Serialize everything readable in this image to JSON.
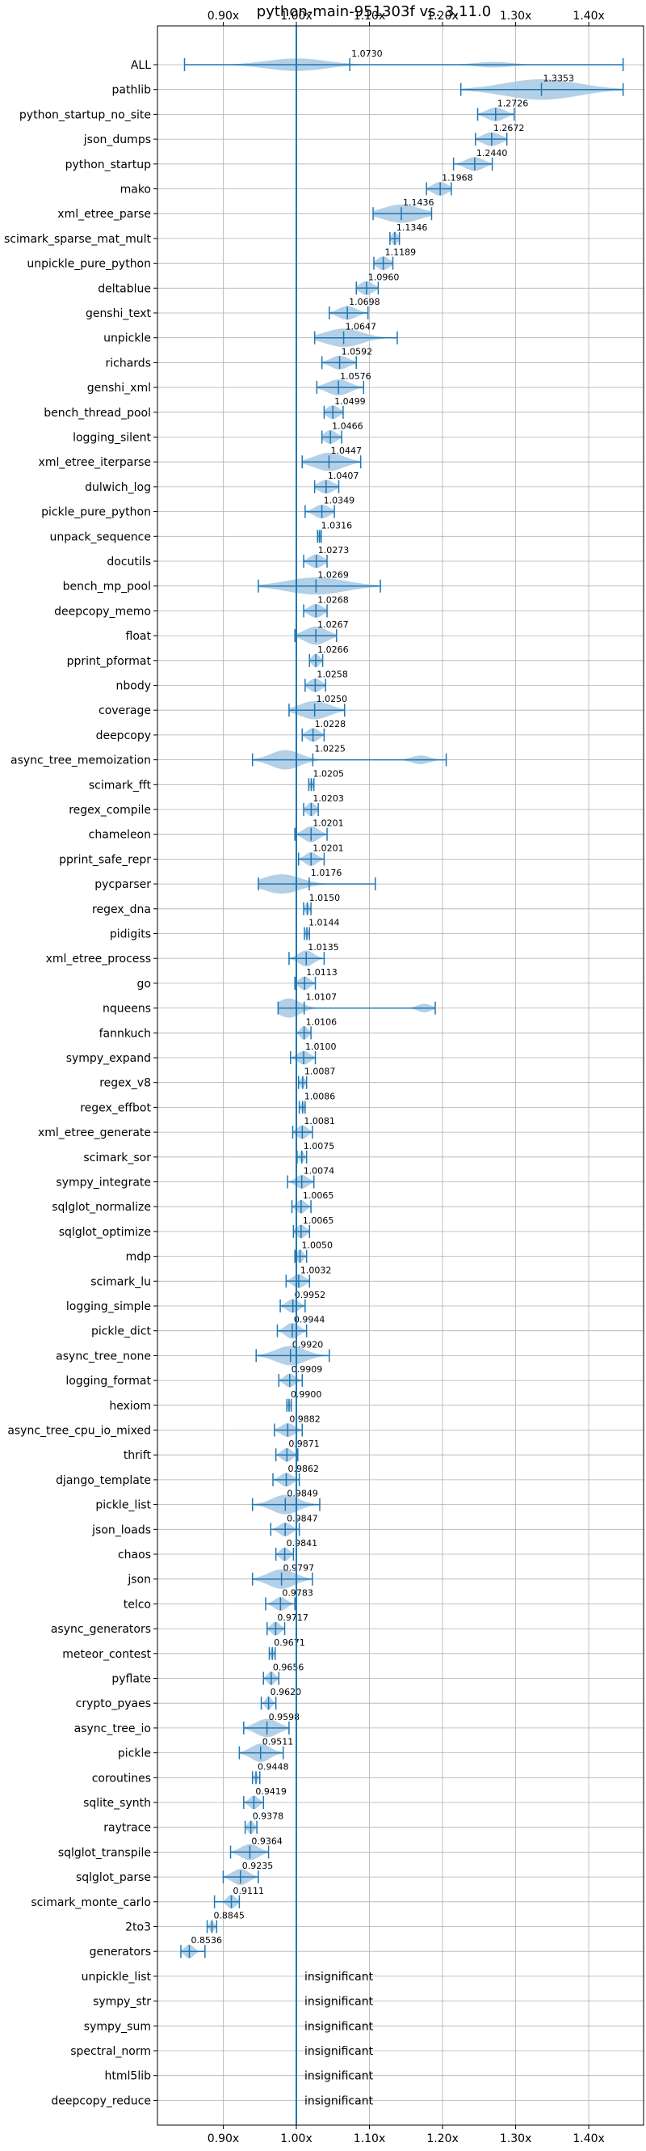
{
  "chart_data": {
    "type": "violin",
    "title": "python-main-951303f vs. 3.11.0",
    "xlim": [
      0.81,
      1.475
    ],
    "xticks": [
      0.9,
      1.0,
      1.1,
      1.2,
      1.3,
      1.4
    ],
    "xtick_labels": [
      "0.90x",
      "1.00x",
      "1.10x",
      "1.20x",
      "1.30x",
      "1.40x"
    ],
    "reference_line": 1.0,
    "colors": {
      "violin": "#a6c8e3",
      "line": "#1f77b4",
      "grid": "#b0b0b0"
    },
    "insignificant_label": "insignificant",
    "benchmarks": [
      {
        "name": "ALL",
        "mean": 1.073,
        "min": 0.847,
        "max": 1.447,
        "spread": 0.04,
        "width": 0.55,
        "center": 1.0,
        "extra": [
          1.27
        ],
        "label": "1.0730"
      },
      {
        "name": "pathlib",
        "mean": 1.3353,
        "min": 1.225,
        "max": 1.447,
        "spread": 0.05,
        "width": 0.9,
        "label": "1.3353"
      },
      {
        "name": "python_startup_no_site",
        "mean": 1.2726,
        "min": 1.248,
        "max": 1.298,
        "spread": 0.012,
        "width": 0.6,
        "label": "1.2726"
      },
      {
        "name": "json_dumps",
        "mean": 1.2672,
        "min": 1.245,
        "max": 1.288,
        "spread": 0.012,
        "width": 0.6,
        "label": "1.2672"
      },
      {
        "name": "python_startup",
        "mean": 1.244,
        "min": 1.215,
        "max": 1.268,
        "spread": 0.012,
        "width": 0.6,
        "label": "1.2440"
      },
      {
        "name": "mako",
        "mean": 1.1968,
        "min": 1.178,
        "max": 1.212,
        "spread": 0.01,
        "width": 0.6,
        "label": "1.1968"
      },
      {
        "name": "xml_etree_parse",
        "mean": 1.1436,
        "min": 1.105,
        "max": 1.185,
        "spread": 0.025,
        "width": 0.8,
        "label": "1.1436"
      },
      {
        "name": "scimark_sparse_mat_mult",
        "mean": 1.1346,
        "min": 1.128,
        "max": 1.141,
        "spread": 0.004,
        "width": 0.6,
        "label": "1.1346"
      },
      {
        "name": "unpickle_pure_python",
        "mean": 1.1189,
        "min": 1.106,
        "max": 1.132,
        "spread": 0.008,
        "width": 0.6,
        "label": "1.1189"
      },
      {
        "name": "deltablue",
        "mean": 1.096,
        "min": 1.082,
        "max": 1.112,
        "spread": 0.009,
        "width": 0.6,
        "label": "1.0960"
      },
      {
        "name": "genshi_text",
        "mean": 1.0698,
        "min": 1.045,
        "max": 1.098,
        "spread": 0.012,
        "width": 0.6,
        "label": "1.0698"
      },
      {
        "name": "unpickle",
        "mean": 1.0647,
        "min": 1.025,
        "max": 1.138,
        "spread": 0.025,
        "width": 0.8,
        "label": "1.0647"
      },
      {
        "name": "richards",
        "mean": 1.0592,
        "min": 1.035,
        "max": 1.082,
        "spread": 0.012,
        "width": 0.6,
        "label": "1.0592"
      },
      {
        "name": "genshi_xml",
        "mean": 1.0576,
        "min": 1.028,
        "max": 1.092,
        "spread": 0.015,
        "width": 0.7,
        "label": "1.0576"
      },
      {
        "name": "bench_thread_pool",
        "mean": 1.0499,
        "min": 1.038,
        "max": 1.064,
        "spread": 0.008,
        "width": 0.6,
        "label": "1.0499"
      },
      {
        "name": "logging_silent",
        "mean": 1.0466,
        "min": 1.035,
        "max": 1.062,
        "spread": 0.008,
        "width": 0.6,
        "label": "1.0466"
      },
      {
        "name": "xml_etree_iterparse",
        "mean": 1.0447,
        "min": 1.008,
        "max": 1.088,
        "spread": 0.02,
        "width": 0.8,
        "label": "1.0447"
      },
      {
        "name": "dulwich_log",
        "mean": 1.0407,
        "min": 1.025,
        "max": 1.058,
        "spread": 0.01,
        "width": 0.6,
        "label": "1.0407"
      },
      {
        "name": "pickle_pure_python",
        "mean": 1.0349,
        "min": 1.012,
        "max": 1.052,
        "spread": 0.01,
        "width": 0.6,
        "label": "1.0349"
      },
      {
        "name": "unpack_sequence",
        "mean": 1.0316,
        "min": 1.029,
        "max": 1.034,
        "spread": 0.002,
        "width": 0.5,
        "label": "1.0316"
      },
      {
        "name": "docutils",
        "mean": 1.0273,
        "min": 1.01,
        "max": 1.042,
        "spread": 0.009,
        "width": 0.6,
        "label": "1.0273"
      },
      {
        "name": "bench_mp_pool",
        "mean": 1.0269,
        "min": 0.948,
        "max": 1.115,
        "spread": 0.04,
        "width": 0.75,
        "label": "1.0269"
      },
      {
        "name": "deepcopy_memo",
        "mean": 1.0268,
        "min": 1.01,
        "max": 1.042,
        "spread": 0.009,
        "width": 0.6,
        "label": "1.0268"
      },
      {
        "name": "float",
        "mean": 1.0267,
        "min": 0.998,
        "max": 1.055,
        "spread": 0.015,
        "width": 0.8,
        "label": "1.0267"
      },
      {
        "name": "pprint_pformat",
        "mean": 1.0266,
        "min": 1.018,
        "max": 1.036,
        "spread": 0.005,
        "width": 0.6,
        "label": "1.0266"
      },
      {
        "name": "nbody",
        "mean": 1.0258,
        "min": 1.012,
        "max": 1.04,
        "spread": 0.008,
        "width": 0.6,
        "label": "1.0258"
      },
      {
        "name": "coverage",
        "mean": 1.025,
        "min": 0.99,
        "max": 1.066,
        "spread": 0.02,
        "width": 0.8,
        "label": "1.0250"
      },
      {
        "name": "deepcopy",
        "mean": 1.0228,
        "min": 1.008,
        "max": 1.038,
        "spread": 0.008,
        "width": 0.6,
        "label": "1.0228"
      },
      {
        "name": "async_tree_memoization",
        "mean": 1.0225,
        "min": 0.94,
        "max": 1.205,
        "spread": 0.02,
        "width": 0.85,
        "center": 0.985,
        "extra": [
          1.17
        ],
        "label": "1.0225"
      },
      {
        "name": "scimark_fft",
        "mean": 1.0205,
        "min": 1.017,
        "max": 1.024,
        "spread": 0.002,
        "width": 0.5,
        "label": "1.0205"
      },
      {
        "name": "regex_compile",
        "mean": 1.0203,
        "min": 1.01,
        "max": 1.03,
        "spread": 0.006,
        "width": 0.6,
        "label": "1.0203"
      },
      {
        "name": "chameleon",
        "mean": 1.0201,
        "min": 0.998,
        "max": 1.042,
        "spread": 0.01,
        "width": 0.7,
        "label": "1.0201"
      },
      {
        "name": "pprint_safe_repr",
        "mean": 1.0201,
        "min": 1.003,
        "max": 1.038,
        "spread": 0.008,
        "width": 0.6,
        "label": "1.0201"
      },
      {
        "name": "pycparser",
        "mean": 1.0176,
        "min": 0.948,
        "max": 1.108,
        "spread": 0.025,
        "width": 0.85,
        "center": 0.98,
        "label": "1.0176"
      },
      {
        "name": "regex_dna",
        "mean": 1.015,
        "min": 1.01,
        "max": 1.02,
        "spread": 0.003,
        "width": 0.5,
        "label": "1.0150"
      },
      {
        "name": "pidigits",
        "mean": 1.0144,
        "min": 1.011,
        "max": 1.018,
        "spread": 0.002,
        "width": 0.5,
        "label": "1.0144"
      },
      {
        "name": "xml_etree_process",
        "mean": 1.0135,
        "min": 0.99,
        "max": 1.038,
        "spread": 0.01,
        "width": 0.7,
        "label": "1.0135"
      },
      {
        "name": "go",
        "mean": 1.0113,
        "min": 0.998,
        "max": 1.026,
        "spread": 0.007,
        "width": 0.6,
        "label": "1.0113"
      },
      {
        "name": "nqueens",
        "mean": 1.0107,
        "min": 0.975,
        "max": 1.19,
        "spread": 0.015,
        "width": 0.85,
        "center": 0.99,
        "extra": [
          1.175
        ],
        "label": "1.0107"
      },
      {
        "name": "fannkuch",
        "mean": 1.0106,
        "min": 1.0,
        "max": 1.02,
        "spread": 0.005,
        "width": 0.6,
        "label": "1.0106"
      },
      {
        "name": "sympy_expand",
        "mean": 1.01,
        "min": 0.992,
        "max": 1.026,
        "spread": 0.008,
        "width": 0.6,
        "label": "1.0100"
      },
      {
        "name": "regex_v8",
        "mean": 1.0087,
        "min": 1.003,
        "max": 1.014,
        "spread": 0.003,
        "width": 0.5,
        "label": "1.0087"
      },
      {
        "name": "regex_effbot",
        "mean": 1.0086,
        "min": 1.004,
        "max": 1.012,
        "spread": 0.002,
        "width": 0.5,
        "label": "1.0086"
      },
      {
        "name": "xml_etree_generate",
        "mean": 1.0081,
        "min": 0.995,
        "max": 1.022,
        "spread": 0.007,
        "width": 0.6,
        "label": "1.0081"
      },
      {
        "name": "scimark_sor",
        "mean": 1.0075,
        "min": 1.001,
        "max": 1.014,
        "spread": 0.003,
        "width": 0.5,
        "label": "1.0075"
      },
      {
        "name": "sympy_integrate",
        "mean": 1.0074,
        "min": 0.988,
        "max": 1.024,
        "spread": 0.008,
        "width": 0.6,
        "label": "1.0074"
      },
      {
        "name": "sqlglot_normalize",
        "mean": 1.0065,
        "min": 0.994,
        "max": 1.02,
        "spread": 0.006,
        "width": 0.6,
        "label": "1.0065"
      },
      {
        "name": "sqlglot_optimize",
        "mean": 1.0065,
        "min": 0.996,
        "max": 1.018,
        "spread": 0.006,
        "width": 0.6,
        "label": "1.0065"
      },
      {
        "name": "mdp",
        "mean": 1.005,
        "min": 0.998,
        "max": 1.014,
        "spread": 0.004,
        "width": 0.6,
        "label": "1.0050"
      },
      {
        "name": "scimark_lu",
        "mean": 1.0032,
        "min": 0.986,
        "max": 1.018,
        "spread": 0.008,
        "width": 0.6,
        "label": "1.0032"
      },
      {
        "name": "logging_simple",
        "mean": 0.9952,
        "min": 0.978,
        "max": 1.012,
        "spread": 0.008,
        "width": 0.6,
        "label": "0.9952"
      },
      {
        "name": "pickle_dict",
        "mean": 0.9944,
        "min": 0.974,
        "max": 1.014,
        "spread": 0.009,
        "width": 0.7,
        "label": "0.9944"
      },
      {
        "name": "async_tree_none",
        "mean": 0.992,
        "min": 0.945,
        "max": 1.045,
        "spread": 0.02,
        "width": 0.85,
        "label": "0.9920"
      },
      {
        "name": "logging_format",
        "mean": 0.9909,
        "min": 0.976,
        "max": 1.008,
        "spread": 0.007,
        "width": 0.6,
        "label": "0.9909"
      },
      {
        "name": "hexiom",
        "mean": 0.99,
        "min": 0.987,
        "max": 0.993,
        "spread": 0.002,
        "width": 0.5,
        "label": "0.9900"
      },
      {
        "name": "async_tree_cpu_io_mixed",
        "mean": 0.9882,
        "min": 0.97,
        "max": 1.008,
        "spread": 0.009,
        "width": 0.6,
        "label": "0.9882"
      },
      {
        "name": "thrift",
        "mean": 0.9871,
        "min": 0.972,
        "max": 1.002,
        "spread": 0.007,
        "width": 0.6,
        "label": "0.9871"
      },
      {
        "name": "django_template",
        "mean": 0.9862,
        "min": 0.968,
        "max": 1.004,
        "spread": 0.008,
        "width": 0.6,
        "label": "0.9862"
      },
      {
        "name": "pickle_list",
        "mean": 0.9849,
        "min": 0.94,
        "max": 1.032,
        "spread": 0.018,
        "width": 0.85,
        "label": "0.9849"
      },
      {
        "name": "json_loads",
        "mean": 0.9847,
        "min": 0.965,
        "max": 1.004,
        "spread": 0.008,
        "width": 0.6,
        "label": "0.9847"
      },
      {
        "name": "chaos",
        "mean": 0.9841,
        "min": 0.972,
        "max": 0.996,
        "spread": 0.006,
        "width": 0.6,
        "label": "0.9841"
      },
      {
        "name": "json",
        "mean": 0.9797,
        "min": 0.94,
        "max": 1.022,
        "spread": 0.018,
        "width": 0.85,
        "label": "0.9797"
      },
      {
        "name": "telco",
        "mean": 0.9783,
        "min": 0.958,
        "max": 0.998,
        "spread": 0.008,
        "width": 0.6,
        "label": "0.9783"
      },
      {
        "name": "async_generators",
        "mean": 0.9717,
        "min": 0.96,
        "max": 0.984,
        "spread": 0.006,
        "width": 0.6,
        "label": "0.9717"
      },
      {
        "name": "meteor_contest",
        "mean": 0.9671,
        "min": 0.963,
        "max": 0.971,
        "spread": 0.002,
        "width": 0.5,
        "label": "0.9671"
      },
      {
        "name": "pyflate",
        "mean": 0.9656,
        "min": 0.955,
        "max": 0.976,
        "spread": 0.005,
        "width": 0.6,
        "label": "0.9656"
      },
      {
        "name": "crypto_pyaes",
        "mean": 0.962,
        "min": 0.952,
        "max": 0.972,
        "spread": 0.004,
        "width": 0.6,
        "label": "0.9620"
      },
      {
        "name": "async_tree_io",
        "mean": 0.9598,
        "min": 0.928,
        "max": 0.99,
        "spread": 0.015,
        "width": 0.8,
        "label": "0.9598"
      },
      {
        "name": "pickle",
        "mean": 0.9511,
        "min": 0.922,
        "max": 0.982,
        "spread": 0.013,
        "width": 0.8,
        "label": "0.9511"
      },
      {
        "name": "coroutines",
        "mean": 0.9448,
        "min": 0.94,
        "max": 0.95,
        "spread": 0.002,
        "width": 0.5,
        "label": "0.9448"
      },
      {
        "name": "sqlite_synth",
        "mean": 0.9419,
        "min": 0.928,
        "max": 0.955,
        "spread": 0.006,
        "width": 0.6,
        "label": "0.9419"
      },
      {
        "name": "raytrace",
        "mean": 0.9378,
        "min": 0.93,
        "max": 0.946,
        "spread": 0.004,
        "width": 0.6,
        "label": "0.9378"
      },
      {
        "name": "sqlglot_transpile",
        "mean": 0.9364,
        "min": 0.91,
        "max": 0.962,
        "spread": 0.012,
        "width": 0.7,
        "label": "0.9364"
      },
      {
        "name": "sqlglot_parse",
        "mean": 0.9235,
        "min": 0.9,
        "max": 0.948,
        "spread": 0.011,
        "width": 0.7,
        "label": "0.9235"
      },
      {
        "name": "scimark_monte_carlo",
        "mean": 0.9111,
        "min": 0.888,
        "max": 0.922,
        "spread": 0.006,
        "width": 0.6,
        "label": "0.9111"
      },
      {
        "name": "2to3",
        "mean": 0.8845,
        "min": 0.878,
        "max": 0.891,
        "spread": 0.003,
        "width": 0.5,
        "label": "0.8845"
      },
      {
        "name": "generators",
        "mean": 0.8536,
        "min": 0.842,
        "max": 0.875,
        "spread": 0.006,
        "width": 0.6,
        "label": "0.8536"
      },
      {
        "name": "unpickle_list",
        "insignificant": true
      },
      {
        "name": "sympy_str",
        "insignificant": true
      },
      {
        "name": "sympy_sum",
        "insignificant": true
      },
      {
        "name": "spectral_norm",
        "insignificant": true
      },
      {
        "name": "html5lib",
        "insignificant": true
      },
      {
        "name": "deepcopy_reduce",
        "insignificant": true
      }
    ]
  }
}
